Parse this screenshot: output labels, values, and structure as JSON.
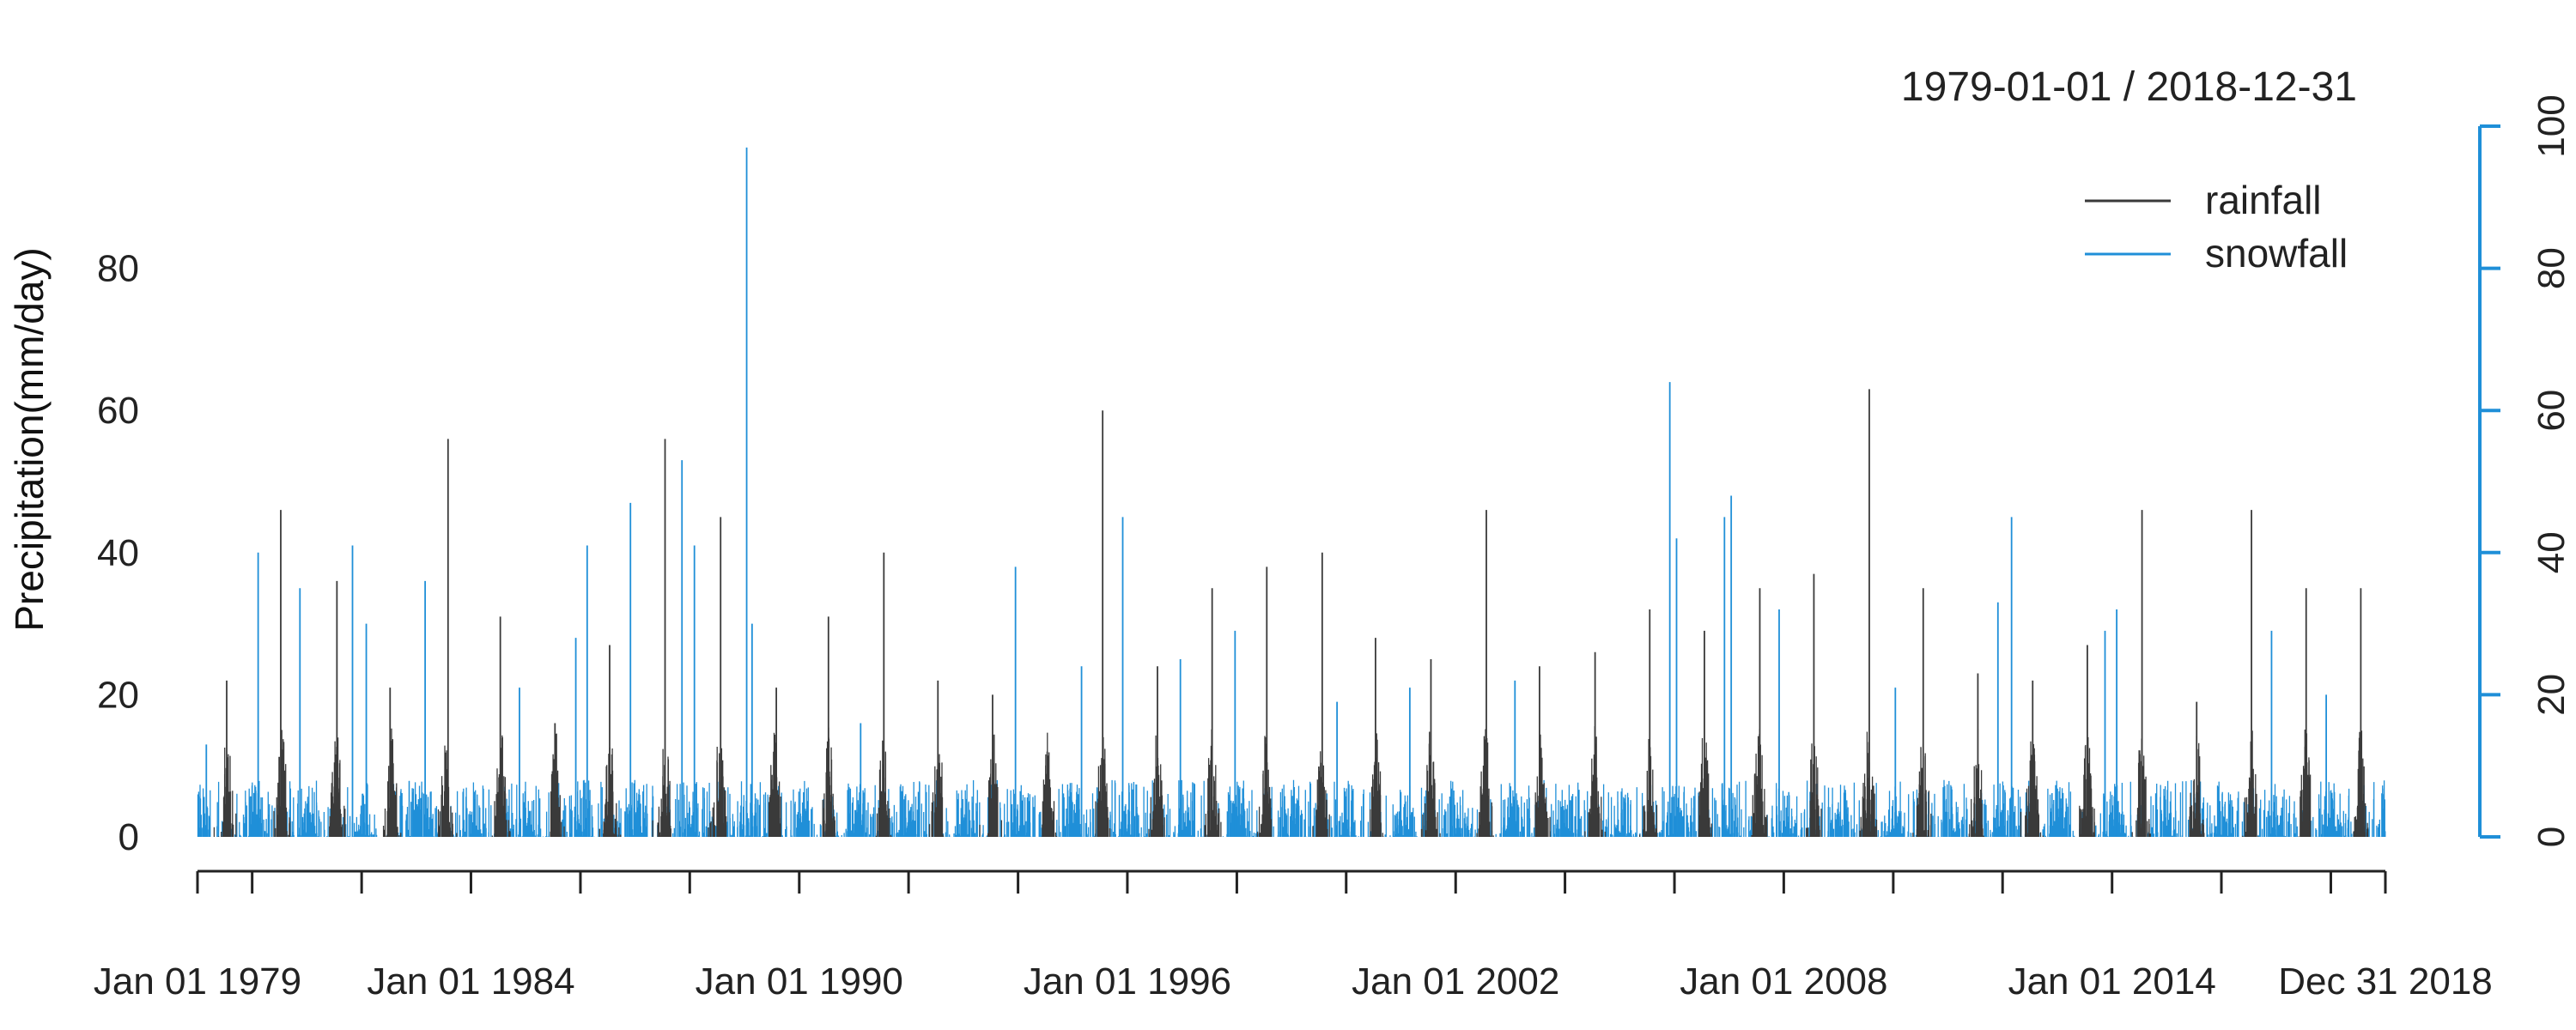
{
  "chart_data": {
    "type": "line",
    "title": "1979-01-01 / 2018-12-31",
    "ylabel": "Precipitation(mm/day)",
    "xlabel": "",
    "x_range": [
      "1979-01-01",
      "2018-12-31"
    ],
    "x_tick_labels": [
      "Jan 01 1979",
      "Jan 01 1984",
      "Jan 01 1990",
      "Jan 01 1996",
      "Jan 01 2002",
      "Jan 01 2008",
      "Jan 01 2014",
      "Dec 31 2018"
    ],
    "x_tick_label_dates": [
      "1979-01-01",
      "1984-01-01",
      "1990-01-01",
      "1996-01-01",
      "2002-01-01",
      "2008-01-01",
      "2014-01-01",
      "2018-12-31"
    ],
    "x_minor_tick_dates": [
      "1979-01-01",
      "1980-01-01",
      "1982-01-01",
      "1984-01-01",
      "1986-01-01",
      "1988-01-01",
      "1990-01-01",
      "1992-01-01",
      "1994-01-01",
      "1996-01-01",
      "1998-01-01",
      "2000-01-01",
      "2002-01-01",
      "2004-01-01",
      "2006-01-01",
      "2008-01-01",
      "2010-01-01",
      "2012-01-01",
      "2014-01-01",
      "2016-01-01",
      "2018-01-01",
      "2018-12-31"
    ],
    "y_left": {
      "ticks": [
        0,
        20,
        40,
        60,
        80
      ],
      "range": [
        0,
        100
      ]
    },
    "y_right": {
      "ticks": [
        0,
        20,
        40,
        60,
        80,
        100
      ],
      "range": [
        0,
        100
      ],
      "color": "#1f8fd8"
    },
    "grid": false,
    "legend": {
      "position": "top-right",
      "entries": [
        "rainfall",
        "snowfall"
      ]
    },
    "series": [
      {
        "name": "rainfall",
        "color": "#3a3a3a",
        "axis": "left",
        "typical_peak": 12,
        "peaks": [
          {
            "date": "1979-07-15",
            "value": 22
          },
          {
            "date": "1980-07-10",
            "value": 46
          },
          {
            "date": "1981-07-20",
            "value": 36
          },
          {
            "date": "1982-07-10",
            "value": 21
          },
          {
            "date": "1983-08-01",
            "value": 56
          },
          {
            "date": "1984-07-15",
            "value": 31
          },
          {
            "date": "1985-07-15",
            "value": 16
          },
          {
            "date": "1986-07-15",
            "value": 27
          },
          {
            "date": "1987-07-20",
            "value": 56
          },
          {
            "date": "1988-07-25",
            "value": 45
          },
          {
            "date": "1989-08-01",
            "value": 21
          },
          {
            "date": "1990-07-15",
            "value": 31
          },
          {
            "date": "1991-07-20",
            "value": 40
          },
          {
            "date": "1992-07-15",
            "value": 22
          },
          {
            "date": "1993-07-15",
            "value": 20
          },
          {
            "date": "1994-07-15",
            "value": 12
          },
          {
            "date": "1995-07-20",
            "value": 60
          },
          {
            "date": "1996-07-20",
            "value": 24
          },
          {
            "date": "1997-07-20",
            "value": 35
          },
          {
            "date": "1998-07-20",
            "value": 38
          },
          {
            "date": "1999-07-25",
            "value": 40
          },
          {
            "date": "2000-07-15",
            "value": 28
          },
          {
            "date": "2001-07-20",
            "value": 25
          },
          {
            "date": "2002-07-25",
            "value": 46
          },
          {
            "date": "2003-07-15",
            "value": 24
          },
          {
            "date": "2004-07-20",
            "value": 26
          },
          {
            "date": "2005-07-20",
            "value": 32
          },
          {
            "date": "2006-07-20",
            "value": 29
          },
          {
            "date": "2007-07-25",
            "value": 35
          },
          {
            "date": "2008-07-20",
            "value": 37
          },
          {
            "date": "2009-07-25",
            "value": 63
          },
          {
            "date": "2010-07-20",
            "value": 35
          },
          {
            "date": "2011-07-20",
            "value": 23
          },
          {
            "date": "2012-07-20",
            "value": 22
          },
          {
            "date": "2013-07-20",
            "value": 27
          },
          {
            "date": "2014-07-20",
            "value": 46
          },
          {
            "date": "2015-07-20",
            "value": 19
          },
          {
            "date": "2016-07-20",
            "value": 46
          },
          {
            "date": "2017-07-20",
            "value": 35
          },
          {
            "date": "2018-07-20",
            "value": 35
          }
        ]
      },
      {
        "name": "snowfall",
        "color": "#1f8fd8",
        "axis": "right",
        "typical_peak": 8,
        "peaks": [
          {
            "date": "1979-03-01",
            "value": 13
          },
          {
            "date": "1980-02-10",
            "value": 40
          },
          {
            "date": "1980-11-15",
            "value": 35
          },
          {
            "date": "1981-11-01",
            "value": 41
          },
          {
            "date": "1982-02-01",
            "value": 30
          },
          {
            "date": "1983-03-01",
            "value": 36
          },
          {
            "date": "1984-11-20",
            "value": 21
          },
          {
            "date": "1985-12-01",
            "value": 28
          },
          {
            "date": "1986-02-15",
            "value": 41
          },
          {
            "date": "1986-12-01",
            "value": 47
          },
          {
            "date": "1987-11-10",
            "value": 53
          },
          {
            "date": "1988-02-01",
            "value": 41
          },
          {
            "date": "1989-01-15",
            "value": 97
          },
          {
            "date": "1989-02-20",
            "value": 30
          },
          {
            "date": "1991-02-15",
            "value": 16
          },
          {
            "date": "1993-12-15",
            "value": 38
          },
          {
            "date": "1995-03-01",
            "value": 24
          },
          {
            "date": "1995-12-01",
            "value": 45
          },
          {
            "date": "1996-12-20",
            "value": 25
          },
          {
            "date": "1997-12-20",
            "value": 29
          },
          {
            "date": "1999-11-01",
            "value": 19
          },
          {
            "date": "2001-03-01",
            "value": 21
          },
          {
            "date": "2003-02-01",
            "value": 22
          },
          {
            "date": "2005-12-01",
            "value": 64
          },
          {
            "date": "2006-01-15",
            "value": 42
          },
          {
            "date": "2006-12-01",
            "value": 45
          },
          {
            "date": "2007-01-15",
            "value": 48
          },
          {
            "date": "2007-12-01",
            "value": 32
          },
          {
            "date": "2010-01-15",
            "value": 21
          },
          {
            "date": "2011-12-01",
            "value": 33
          },
          {
            "date": "2012-03-01",
            "value": 45
          },
          {
            "date": "2013-11-15",
            "value": 29
          },
          {
            "date": "2014-02-01",
            "value": 32
          },
          {
            "date": "2016-12-01",
            "value": 29
          },
          {
            "date": "2017-12-01",
            "value": 20
          }
        ]
      }
    ]
  }
}
